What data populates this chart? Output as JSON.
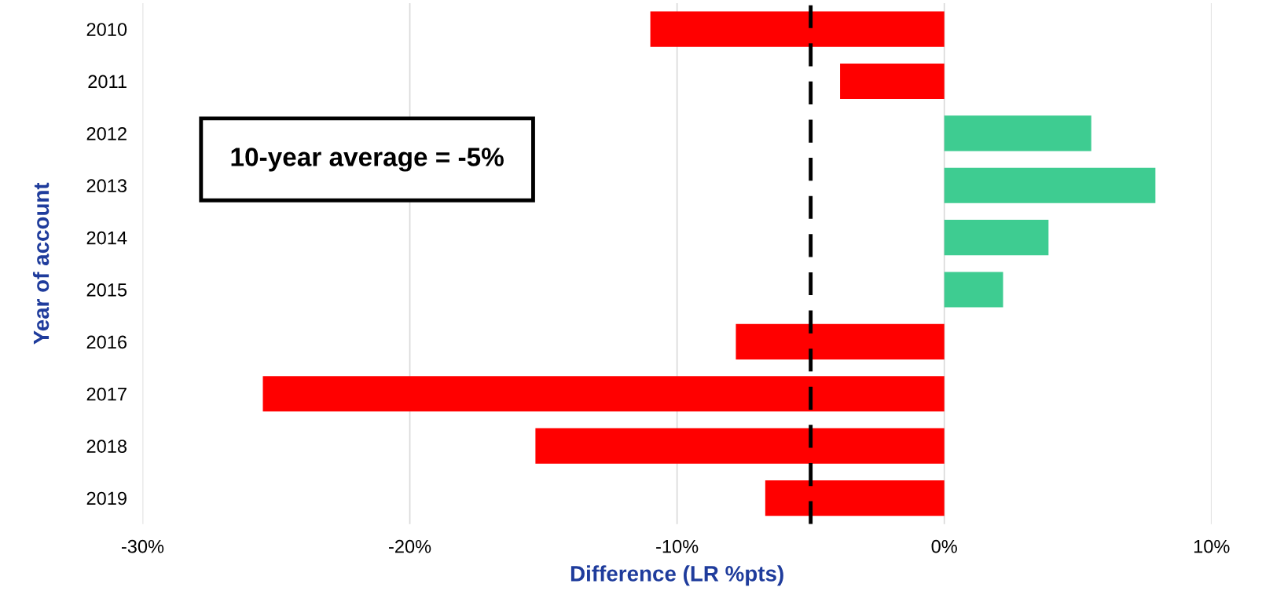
{
  "chart_data": {
    "type": "bar",
    "orientation": "horizontal",
    "categories": [
      "2010",
      "2011",
      "2012",
      "2013",
      "2014",
      "2015",
      "2016",
      "2017",
      "2018",
      "2019"
    ],
    "values": [
      -11.0,
      -3.9,
      5.5,
      7.9,
      3.9,
      2.2,
      -7.8,
      -25.5,
      -15.3,
      -6.7
    ],
    "colors": [
      "#ff0000",
      "#ff0000",
      "#3ecc91",
      "#3ecc91",
      "#3ecc91",
      "#3ecc91",
      "#ff0000",
      "#ff0000",
      "#ff0000",
      "#ff0000"
    ],
    "xlabel": "Difference (LR %pts)",
    "ylabel": "Year of account",
    "xlim": [
      -30,
      10
    ],
    "xticks": [
      {
        "value": -30,
        "label": "-30%"
      },
      {
        "value": -20,
        "label": "-20%"
      },
      {
        "value": -10,
        "label": "-10%"
      },
      {
        "value": 0,
        "label": "0%"
      },
      {
        "value": 10,
        "label": "10%"
      }
    ],
    "grid": "x",
    "ref_lines": [
      {
        "axis": "x",
        "value": -5,
        "color": "#000000",
        "line_style": "dashed"
      }
    ],
    "annotations": [
      "10-year average = -5%"
    ]
  }
}
